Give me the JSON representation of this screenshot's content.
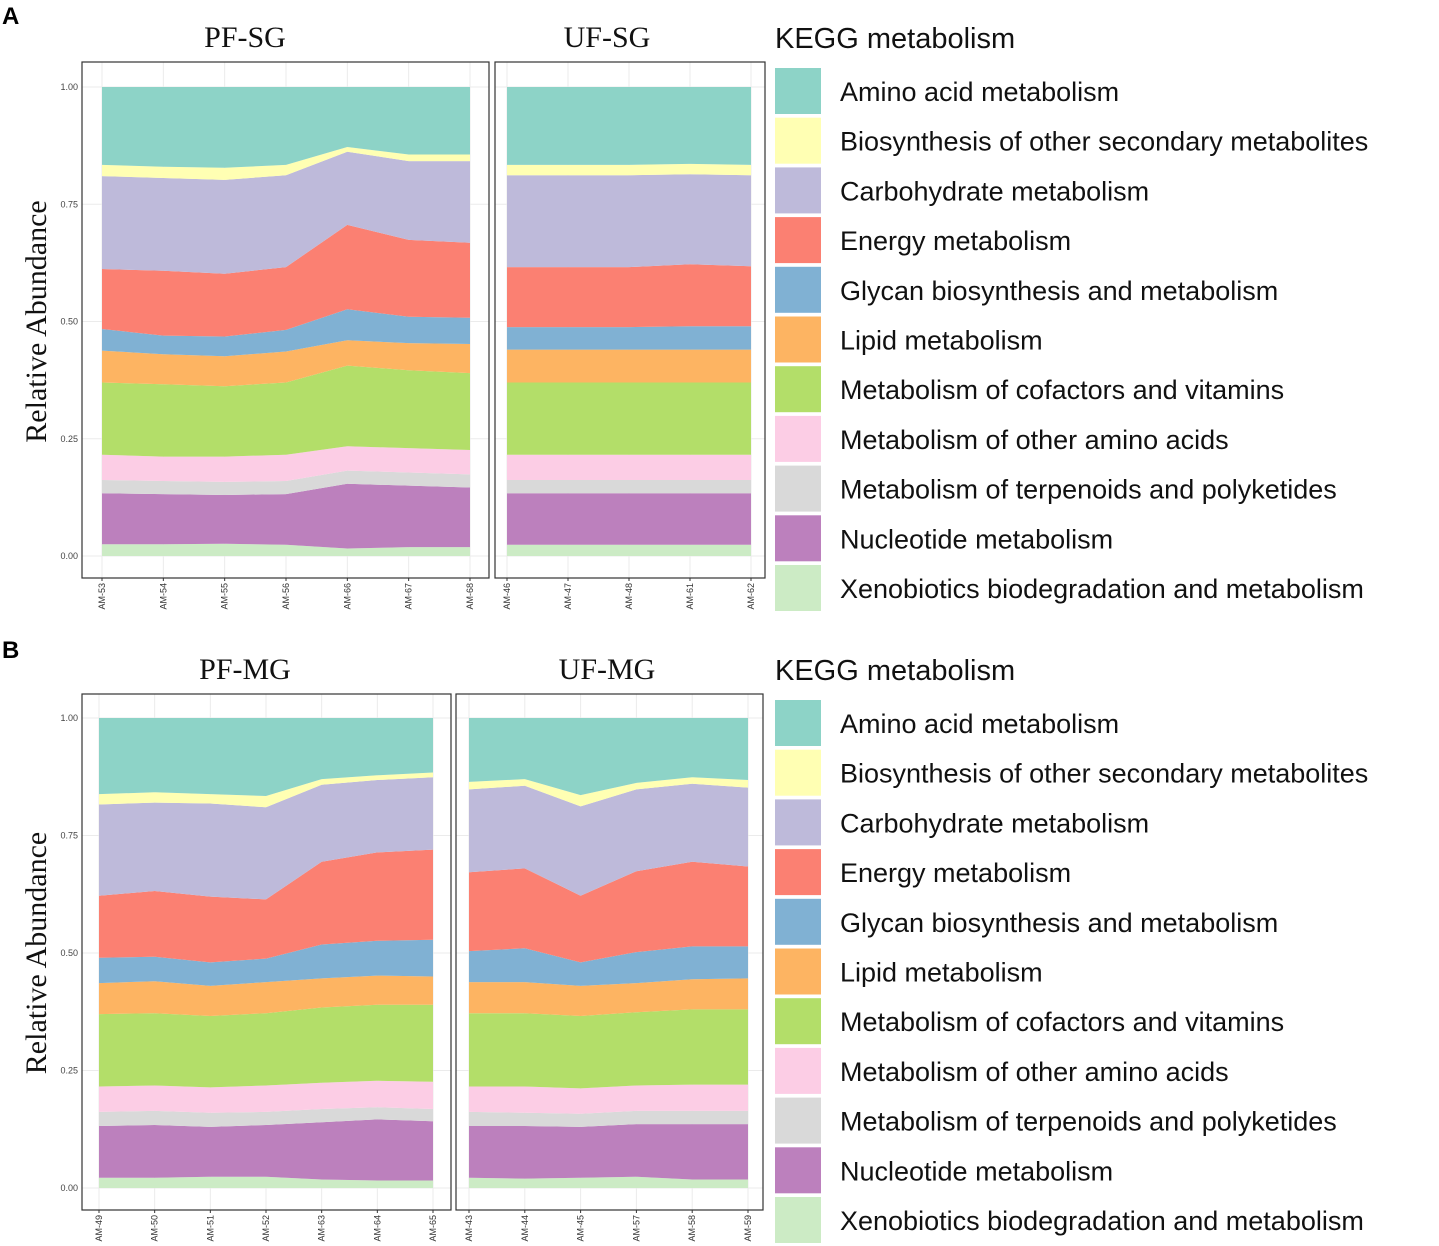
{
  "chart_data": [
    {
      "panel": "A",
      "type": "area",
      "stacked": true,
      "ylabel": "Relative Abundance",
      "ylim": [
        0,
        1
      ],
      "yticks": [
        "0.00",
        "0.25",
        "0.50",
        "0.75",
        "1.00"
      ],
      "legend_title": "KEGG metabolism",
      "legend": [
        "Amino acid metabolism",
        "Biosynthesis of other secondary metabolites",
        "Carbohydrate metabolism",
        "Energy metabolism",
        "Glycan biosynthesis and metabolism",
        "Lipid metabolism",
        "Metabolism of cofactors and vitamins",
        "Metabolism of other amino acids",
        "Metabolism of terpenoids and polyketides",
        "Nucleotide metabolism",
        "Xenobiotics biodegradation and metabolism"
      ],
      "colors": [
        "#8dd3c7",
        "#ffffb3",
        "#bebada",
        "#fb8072",
        "#80b1d3",
        "#fdb462",
        "#b3de69",
        "#fccde5",
        "#d9d9d9",
        "#bc80bd",
        "#ccebc5"
      ],
      "facets": [
        {
          "title": "PF-SG",
          "categories": [
            "AM-53",
            "AM-54",
            "AM-55",
            "AM-56",
            "AM-66",
            "AM-67",
            "AM-68"
          ],
          "cumulative_tops": [
            [
              0.025,
              0.025,
              0.026,
              0.024,
              0.016,
              0.019,
              0.019
            ],
            [
              0.134,
              0.132,
              0.13,
              0.132,
              0.154,
              0.15,
              0.146
            ],
            [
              0.162,
              0.16,
              0.158,
              0.16,
              0.182,
              0.178,
              0.174
            ],
            [
              0.216,
              0.212,
              0.212,
              0.216,
              0.234,
              0.23,
              0.226
            ],
            [
              0.37,
              0.366,
              0.362,
              0.37,
              0.406,
              0.396,
              0.39
            ],
            [
              0.438,
              0.43,
              0.426,
              0.436,
              0.46,
              0.454,
              0.452
            ],
            [
              0.484,
              0.47,
              0.468,
              0.482,
              0.526,
              0.51,
              0.508
            ],
            [
              0.612,
              0.608,
              0.602,
              0.616,
              0.706,
              0.674,
              0.668
            ],
            [
              0.81,
              0.806,
              0.802,
              0.812,
              0.862,
              0.842,
              0.842
            ],
            [
              0.834,
              0.83,
              0.828,
              0.834,
              0.872,
              0.856,
              0.856
            ],
            [
              1.0,
              1.0,
              1.0,
              1.0,
              1.0,
              1.0,
              1.0
            ]
          ]
        },
        {
          "title": "UF-SG",
          "categories": [
            "AM-46",
            "AM-47",
            "AM-48",
            "AM-61",
            "AM-62"
          ],
          "cumulative_tops": [
            [
              0.024,
              0.024,
              0.024,
              0.024,
              0.024
            ],
            [
              0.134,
              0.134,
              0.134,
              0.134,
              0.134
            ],
            [
              0.162,
              0.162,
              0.162,
              0.162,
              0.162
            ],
            [
              0.216,
              0.216,
              0.216,
              0.216,
              0.216
            ],
            [
              0.37,
              0.37,
              0.37,
              0.37,
              0.37
            ],
            [
              0.44,
              0.44,
              0.44,
              0.44,
              0.44
            ],
            [
              0.488,
              0.488,
              0.488,
              0.49,
              0.49
            ],
            [
              0.616,
              0.616,
              0.616,
              0.622,
              0.618
            ],
            [
              0.812,
              0.812,
              0.812,
              0.814,
              0.812
            ],
            [
              0.834,
              0.834,
              0.834,
              0.836,
              0.834
            ],
            [
              1.0,
              1.0,
              1.0,
              1.0,
              1.0
            ]
          ]
        }
      ]
    },
    {
      "panel": "B",
      "type": "area",
      "stacked": true,
      "ylabel": "Relative Abundance",
      "ylim": [
        0,
        1
      ],
      "yticks": [
        "0.00",
        "0.25",
        "0.50",
        "0.75",
        "1.00"
      ],
      "legend_title": "KEGG metabolism",
      "legend": [
        "Amino acid metabolism",
        "Biosynthesis of other secondary metabolites",
        "Carbohydrate metabolism",
        "Energy metabolism",
        "Glycan biosynthesis and metabolism",
        "Lipid metabolism",
        "Metabolism of cofactors and vitamins",
        "Metabolism of other amino acids",
        "Metabolism of terpenoids and polyketides",
        "Nucleotide metabolism",
        "Xenobiotics biodegradation and metabolism"
      ],
      "colors": [
        "#8dd3c7",
        "#ffffb3",
        "#bebada",
        "#fb8072",
        "#80b1d3",
        "#fdb462",
        "#b3de69",
        "#fccde5",
        "#d9d9d9",
        "#bc80bd",
        "#ccebc5"
      ],
      "facets": [
        {
          "title": "PF-MG",
          "categories": [
            "AM-49",
            "AM-50",
            "AM-51",
            "AM-52",
            "AM-63",
            "AM-64",
            "AM-65"
          ],
          "cumulative_tops": [
            [
              0.022,
              0.022,
              0.024,
              0.024,
              0.018,
              0.016,
              0.016
            ],
            [
              0.132,
              0.134,
              0.13,
              0.134,
              0.14,
              0.146,
              0.142
            ],
            [
              0.162,
              0.164,
              0.16,
              0.162,
              0.168,
              0.172,
              0.168
            ],
            [
              0.216,
              0.218,
              0.214,
              0.218,
              0.224,
              0.228,
              0.226
            ],
            [
              0.37,
              0.372,
              0.366,
              0.372,
              0.384,
              0.39,
              0.39
            ],
            [
              0.436,
              0.44,
              0.43,
              0.438,
              0.446,
              0.452,
              0.45
            ],
            [
              0.49,
              0.492,
              0.48,
              0.488,
              0.518,
              0.526,
              0.528
            ],
            [
              0.622,
              0.632,
              0.62,
              0.614,
              0.694,
              0.714,
              0.72
            ],
            [
              0.816,
              0.82,
              0.818,
              0.81,
              0.858,
              0.868,
              0.874
            ],
            [
              0.838,
              0.842,
              0.838,
              0.834,
              0.87,
              0.878,
              0.884
            ],
            [
              1.0,
              1.0,
              1.0,
              1.0,
              1.0,
              1.0,
              1.0
            ]
          ]
        },
        {
          "title": "UF-MG",
          "categories": [
            "AM-43",
            "AM-44",
            "AM-45",
            "AM-57",
            "AM-58",
            "AM-59"
          ],
          "cumulative_tops": [
            [
              0.022,
              0.02,
              0.022,
              0.024,
              0.018,
              0.018
            ],
            [
              0.132,
              0.132,
              0.13,
              0.136,
              0.136,
              0.136
            ],
            [
              0.162,
              0.16,
              0.158,
              0.164,
              0.164,
              0.164
            ],
            [
              0.216,
              0.216,
              0.212,
              0.218,
              0.22,
              0.22
            ],
            [
              0.372,
              0.372,
              0.366,
              0.374,
              0.38,
              0.38
            ],
            [
              0.438,
              0.438,
              0.43,
              0.436,
              0.444,
              0.446
            ],
            [
              0.504,
              0.51,
              0.48,
              0.502,
              0.514,
              0.514
            ],
            [
              0.672,
              0.68,
              0.622,
              0.674,
              0.694,
              0.684
            ],
            [
              0.848,
              0.856,
              0.812,
              0.848,
              0.86,
              0.852
            ],
            [
              0.864,
              0.87,
              0.836,
              0.862,
              0.874,
              0.868
            ],
            [
              1.0,
              1.0,
              1.0,
              1.0,
              1.0,
              1.0
            ]
          ]
        }
      ]
    }
  ]
}
